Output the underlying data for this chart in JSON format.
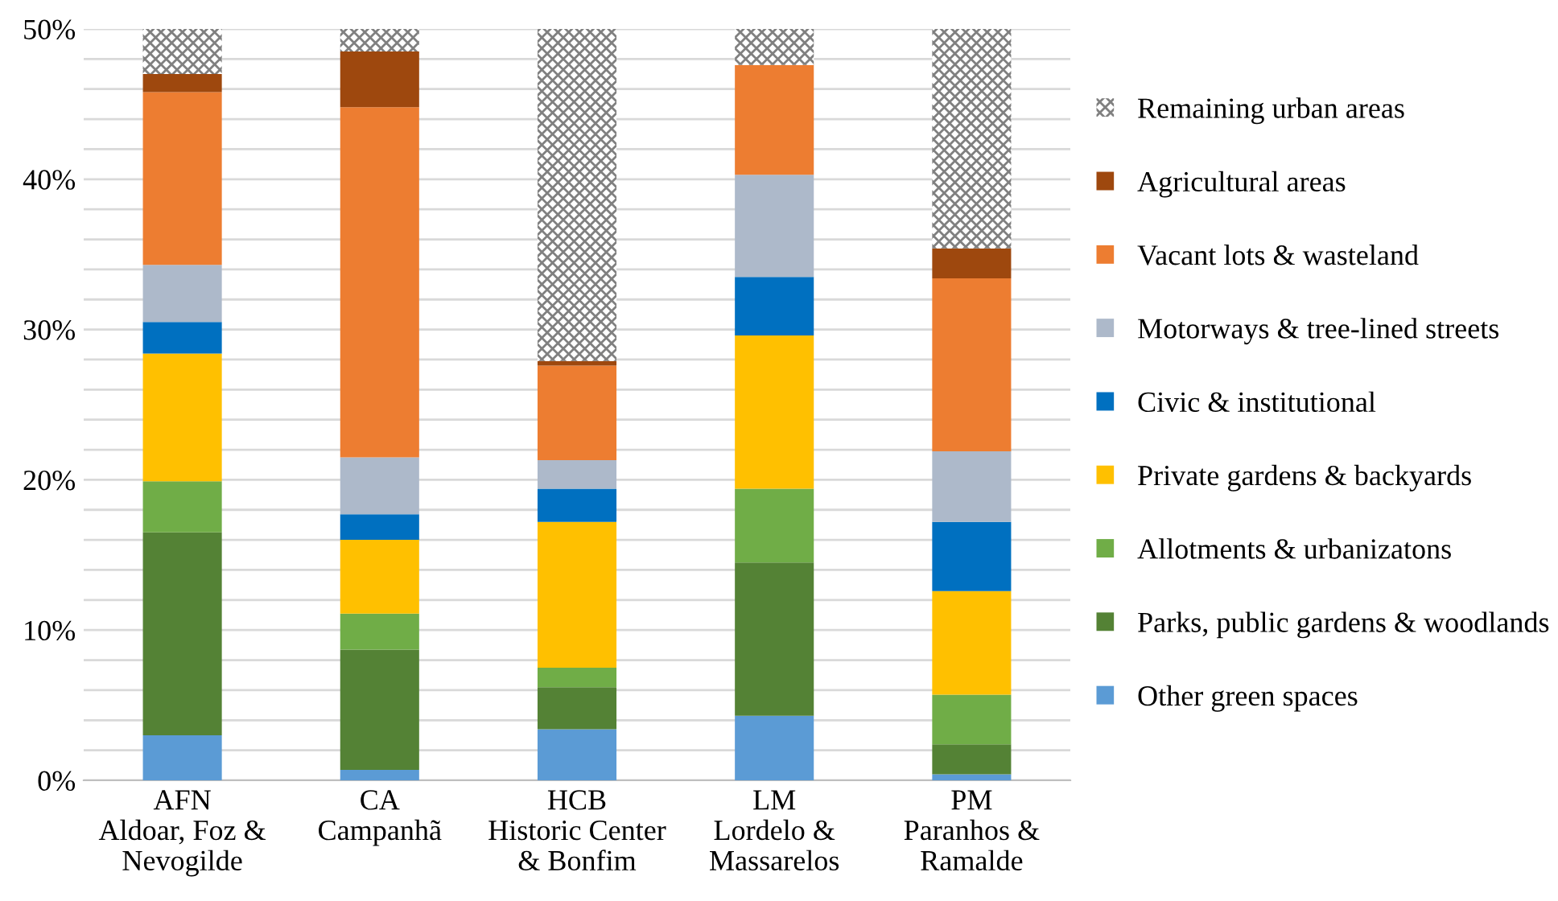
{
  "chart_data": {
    "type": "bar",
    "stacked": true,
    "categories": [
      "AFN\nAldoar, Foz &\nNevogilde",
      "CA\nCampanhã",
      "HCB\nHistoric Center\n& Bonfim",
      "LM\nLordelo &\nMassarelos",
      "PM\nParanhos &\nRamalde"
    ],
    "series": [
      {
        "name": "Other green spaces",
        "color": "#5b9bd5",
        "values": [
          3.0,
          0.7,
          3.4,
          4.3,
          0.4
        ]
      },
      {
        "name": "Parks, public gardens & woodlands",
        "color": "#548235",
        "values": [
          13.5,
          8.0,
          2.8,
          10.2,
          2.0
        ]
      },
      {
        "name": "Allotments & urbanizatons",
        "color": "#70ad47",
        "values": [
          3.4,
          2.4,
          1.3,
          4.9,
          3.3
        ]
      },
      {
        "name": "Private gardens & backyards",
        "color": "#ffc000",
        "values": [
          8.5,
          4.9,
          9.7,
          10.2,
          6.9
        ]
      },
      {
        "name": "Civic & institutional",
        "color": "#0070c0",
        "values": [
          2.1,
          1.7,
          2.2,
          3.9,
          4.6
        ]
      },
      {
        "name": "Motorways & tree-lined streets",
        "color": "#adb9ca",
        "values": [
          3.8,
          3.8,
          1.9,
          6.8,
          4.7
        ]
      },
      {
        "name": "Vacant lots & wasteland",
        "color": "#ed7d31",
        "values": [
          11.5,
          23.3,
          6.3,
          7.3,
          11.5
        ]
      },
      {
        "name": "Agricultural areas",
        "color": "#9e480e",
        "values": [
          1.2,
          3.7,
          0.3,
          0,
          2.0
        ]
      },
      {
        "name": "Remaining urban areas",
        "color": "#808080",
        "values": [
          3.0,
          1.5,
          22.1,
          2.4,
          14.6
        ]
      }
    ],
    "ylim": [
      0,
      50
    ],
    "yticks": [
      {
        "value": 0,
        "label": "0%"
      },
      {
        "value": 2,
        "label": null
      },
      {
        "value": 4,
        "label": null
      },
      {
        "value": 6,
        "label": null
      },
      {
        "value": 8,
        "label": null
      },
      {
        "value": 10,
        "label": "10%"
      },
      {
        "value": 12,
        "label": null
      },
      {
        "value": 14,
        "label": null
      },
      {
        "value": 16,
        "label": null
      },
      {
        "value": 18,
        "label": null
      },
      {
        "value": 20,
        "label": "20%"
      },
      {
        "value": 22,
        "label": null
      },
      {
        "value": 24,
        "label": null
      },
      {
        "value": 26,
        "label": null
      },
      {
        "value": 28,
        "label": null
      },
      {
        "value": 30,
        "label": "30%"
      },
      {
        "value": 32,
        "label": null
      },
      {
        "value": 34,
        "label": null
      },
      {
        "value": 36,
        "label": null
      },
      {
        "value": 38,
        "label": null
      },
      {
        "value": 40,
        "label": "40%"
      },
      {
        "value": 42,
        "label": null
      },
      {
        "value": 44,
        "label": null
      },
      {
        "value": 46,
        "label": null
      },
      {
        "value": 48,
        "label": null
      },
      {
        "value": 50,
        "label": "50%"
      }
    ],
    "grid": "y",
    "legend": "right"
  }
}
